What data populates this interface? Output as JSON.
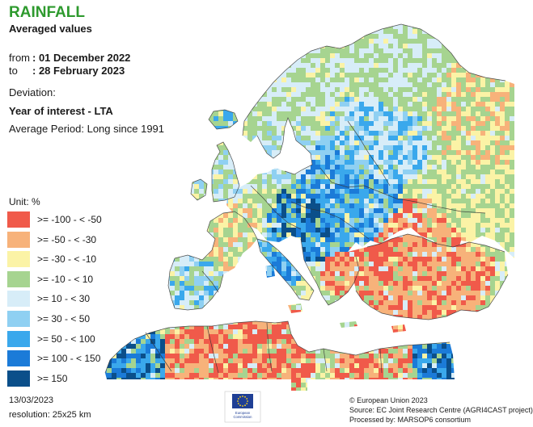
{
  "header": {
    "title": "RAINFALL",
    "subtitle": "Averaged values",
    "from_label": "from",
    "from_value": ": 01 December 2022",
    "to_label": "to",
    "to_value": ": 28 February 2023",
    "deviation": "Deviation:",
    "year_of_interest": "Year of interest - LTA",
    "average_period": "Average Period: Long since 1991"
  },
  "legend": {
    "unit_label": "Unit:  %",
    "items": [
      {
        "label": ">= -100 - < -50",
        "color": "#f05a4a"
      },
      {
        "label": ">= -50 - < -30",
        "color": "#f7b27a"
      },
      {
        "label": ">= -30 - < -10",
        "color": "#fbf3a6"
      },
      {
        "label": ">= -10 - < 10",
        "color": "#a6d490"
      },
      {
        "label": ">= 10 - < 30",
        "color": "#d7edf8"
      },
      {
        "label": ">= 30 - < 50",
        "color": "#8fd0f2"
      },
      {
        "label": ">= 50 - < 100",
        "color": "#3aa8ec"
      },
      {
        "label": ">= 100 - < 150",
        "color": "#1b7bd8"
      },
      {
        "label": ">= 150",
        "color": "#0b4f8a"
      }
    ]
  },
  "footer": {
    "date": "13/03/2023",
    "resolution": "resolution:  25x25 km",
    "copyright": "© European Union 2023",
    "source": "Source: EC Joint Research Centre (AGRI4CAST project)",
    "processed_by": "Processed by: MARSOP6 consortium",
    "logo_caption_1": "European",
    "logo_caption_2": "Commission"
  },
  "colors": {
    "title": "#2e9a2e",
    "eu_blue": "#1f3f95",
    "eu_star": "#ffd617",
    "sea": "#ffffff",
    "border": "#333333"
  }
}
